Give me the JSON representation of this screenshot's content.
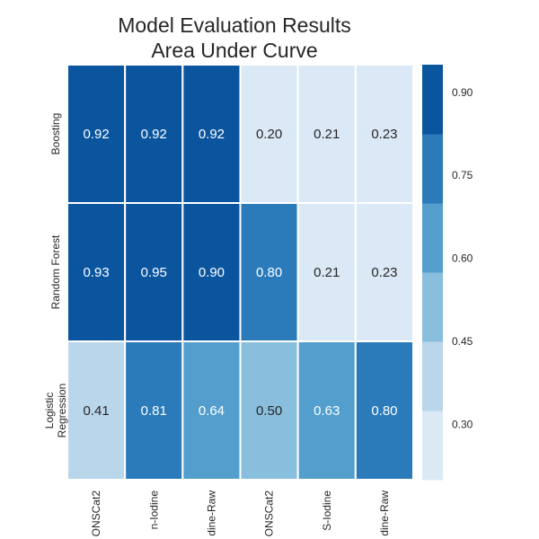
{
  "title_lines": [
    "Model Evaluation Results",
    "Area Under Curve"
  ],
  "colors": {
    "palette": [
      "#dbe9f6",
      "#bad6eb",
      "#89bedc",
      "#539ecd",
      "#2b7bba",
      "#0b559f"
    ],
    "text_light": "#ffffff",
    "text_dark": "#262626",
    "gridline": "#ffffff"
  },
  "chart_data": {
    "type": "heatmap",
    "title": "Model Evaluation Results\nArea Under Curve",
    "rows": [
      "Boosting",
      "Random Forest",
      "Logistic Regression"
    ],
    "row_tick_lines": [
      [
        "Boosting"
      ],
      [
        "Random Forest"
      ],
      [
        "Logistic",
        "Regression"
      ]
    ],
    "columns": [
      "ONSCat2",
      "n-Iodine",
      "dine-Raw",
      "ONSCat2",
      "S-Iodine",
      "dine-Raw"
    ],
    "values": [
      [
        0.92,
        0.92,
        0.92,
        0.2,
        0.21,
        0.23
      ],
      [
        0.93,
        0.95,
        0.9,
        0.8,
        0.21,
        0.23
      ],
      [
        0.41,
        0.81,
        0.64,
        0.5,
        0.63,
        0.8
      ]
    ],
    "value_labels": [
      [
        "0.92",
        "0.92",
        "0.92",
        "0.20",
        "0.21",
        "0.23"
      ],
      [
        "0.93",
        "0.95",
        "0.90",
        "0.80",
        "0.21",
        "0.23"
      ],
      [
        "0.41",
        "0.81",
        "0.64",
        "0.50",
        "0.63",
        "0.80"
      ]
    ],
    "colorbar": {
      "range": [
        0.2,
        0.95
      ],
      "bins": 6,
      "ticks": [
        0.3,
        0.45,
        0.6,
        0.75,
        0.9
      ],
      "tick_labels": [
        "0.30",
        "0.45",
        "0.60",
        "0.75",
        "0.90"
      ]
    },
    "xlabel": "",
    "ylabel": "",
    "grid": false,
    "legend": "colorbar-right"
  }
}
